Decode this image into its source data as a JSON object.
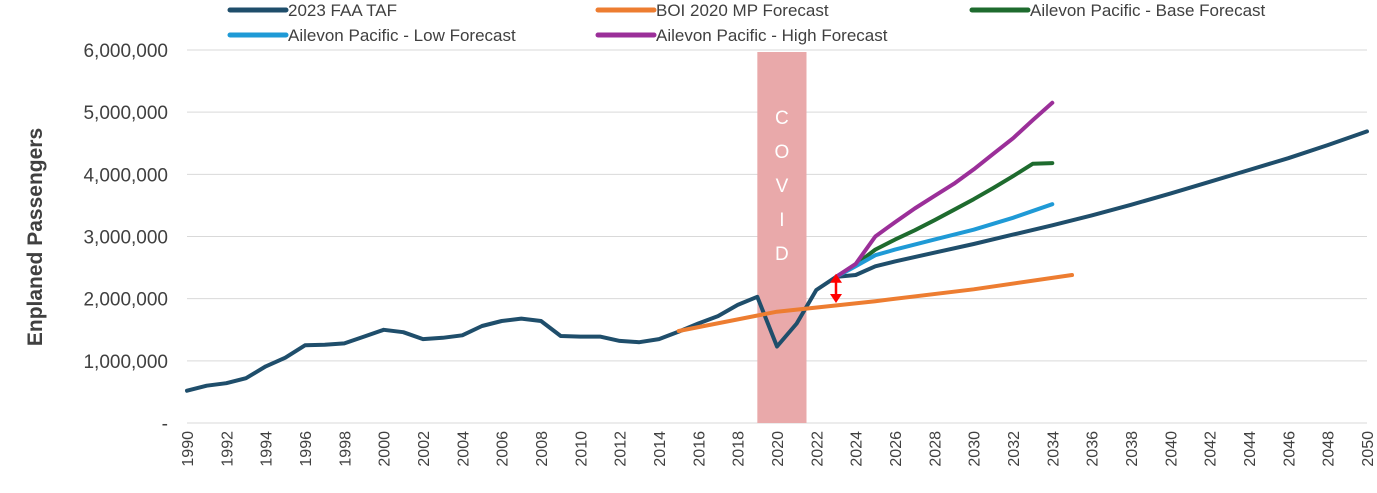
{
  "chart_data": {
    "type": "line",
    "title": "",
    "xlabel": "",
    "ylabel": "Enplaned Passengers",
    "xlim": [
      1990,
      2050
    ],
    "ylim": [
      0,
      6000000
    ],
    "y_ticks": [
      {
        "value": 0,
        "label": "-"
      },
      {
        "value": 1000000,
        "label": "1,000,000"
      },
      {
        "value": 2000000,
        "label": "2,000,000"
      },
      {
        "value": 3000000,
        "label": "3,000,000"
      },
      {
        "value": 4000000,
        "label": "4,000,000"
      },
      {
        "value": 5000000,
        "label": "5,000,000"
      },
      {
        "value": 6000000,
        "label": "6,000,000"
      }
    ],
    "x_ticks": [
      1990,
      1992,
      1994,
      1996,
      1998,
      2000,
      2002,
      2004,
      2006,
      2008,
      2010,
      2012,
      2014,
      2016,
      2018,
      2020,
      2022,
      2024,
      2026,
      2028,
      2030,
      2032,
      2034,
      2036,
      2038,
      2040,
      2042,
      2044,
      2046,
      2048,
      2050
    ],
    "grid": "horizontal",
    "legend_position": "top",
    "annotation": {
      "label": "COVID",
      "letters": [
        "C",
        "O",
        "V",
        "I",
        "D"
      ],
      "x_start": 2019,
      "x_end": 2021.5,
      "color": "#e9a9aa"
    },
    "gap_arrow": {
      "x": 2023,
      "y_top": 2400000,
      "y_bottom": 1930000,
      "color": "#ff0000"
    },
    "series": [
      {
        "name": "2023 FAA TAF",
        "color": "#1f4e6b",
        "x": [
          1990,
          1991,
          1992,
          1993,
          1994,
          1995,
          1996,
          1997,
          1998,
          1999,
          2000,
          2001,
          2002,
          2003,
          2004,
          2005,
          2006,
          2007,
          2008,
          2009,
          2010,
          2011,
          2012,
          2013,
          2014,
          2015,
          2016,
          2017,
          2018,
          2019,
          2020,
          2021,
          2022,
          2023,
          2024,
          2025,
          2026,
          2028,
          2030,
          2032,
          2034,
          2036,
          2038,
          2040,
          2042,
          2044,
          2046,
          2048,
          2050
        ],
        "values": [
          520000,
          600000,
          640000,
          720000,
          910000,
          1050000,
          1250000,
          1260000,
          1280000,
          1390000,
          1500000,
          1460000,
          1350000,
          1370000,
          1410000,
          1560000,
          1640000,
          1680000,
          1640000,
          1400000,
          1390000,
          1390000,
          1320000,
          1300000,
          1350000,
          1470000,
          1600000,
          1720000,
          1900000,
          2030000,
          1230000,
          1600000,
          2140000,
          2350000,
          2380000,
          2520000,
          2600000,
          2740000,
          2880000,
          3030000,
          3180000,
          3340000,
          3510000,
          3690000,
          3880000,
          4070000,
          4260000,
          4470000,
          4690000
        ]
      },
      {
        "name": "BOI 2020 MP Forecast",
        "color": "#ed7d31",
        "x": [
          2015,
          2020,
          2025,
          2030,
          2035
        ],
        "values": [
          1480000,
          1790000,
          1960000,
          2150000,
          2380000
        ]
      },
      {
        "name": "Ailevon Pacific - Base Forecast",
        "color": "#1e6b2e",
        "x": [
          2023,
          2024,
          2025,
          2026,
          2027,
          2028,
          2029,
          2030,
          2031,
          2032,
          2033,
          2034
        ],
        "values": [
          2350000,
          2550000,
          2790000,
          2950000,
          3100000,
          3260000,
          3430000,
          3600000,
          3780000,
          3970000,
          4170000,
          4180000
        ]
      },
      {
        "name": "Ailevon Pacific - Low Forecast",
        "color": "#1f9ad6",
        "x": [
          2023,
          2024,
          2025,
          2026,
          2028,
          2030,
          2032,
          2034
        ],
        "values": [
          2350000,
          2520000,
          2700000,
          2790000,
          2950000,
          3110000,
          3300000,
          3520000
        ]
      },
      {
        "name": "Ailevon Pacific - High Forecast",
        "color": "#9b2f99",
        "x": [
          2023,
          2024,
          2025,
          2026,
          2027,
          2028,
          2029,
          2030,
          2031,
          2032,
          2033,
          2034
        ],
        "values": [
          2350000,
          2560000,
          3000000,
          3230000,
          3450000,
          3650000,
          3850000,
          4080000,
          4330000,
          4580000,
          4870000,
          5150000
        ]
      }
    ]
  }
}
